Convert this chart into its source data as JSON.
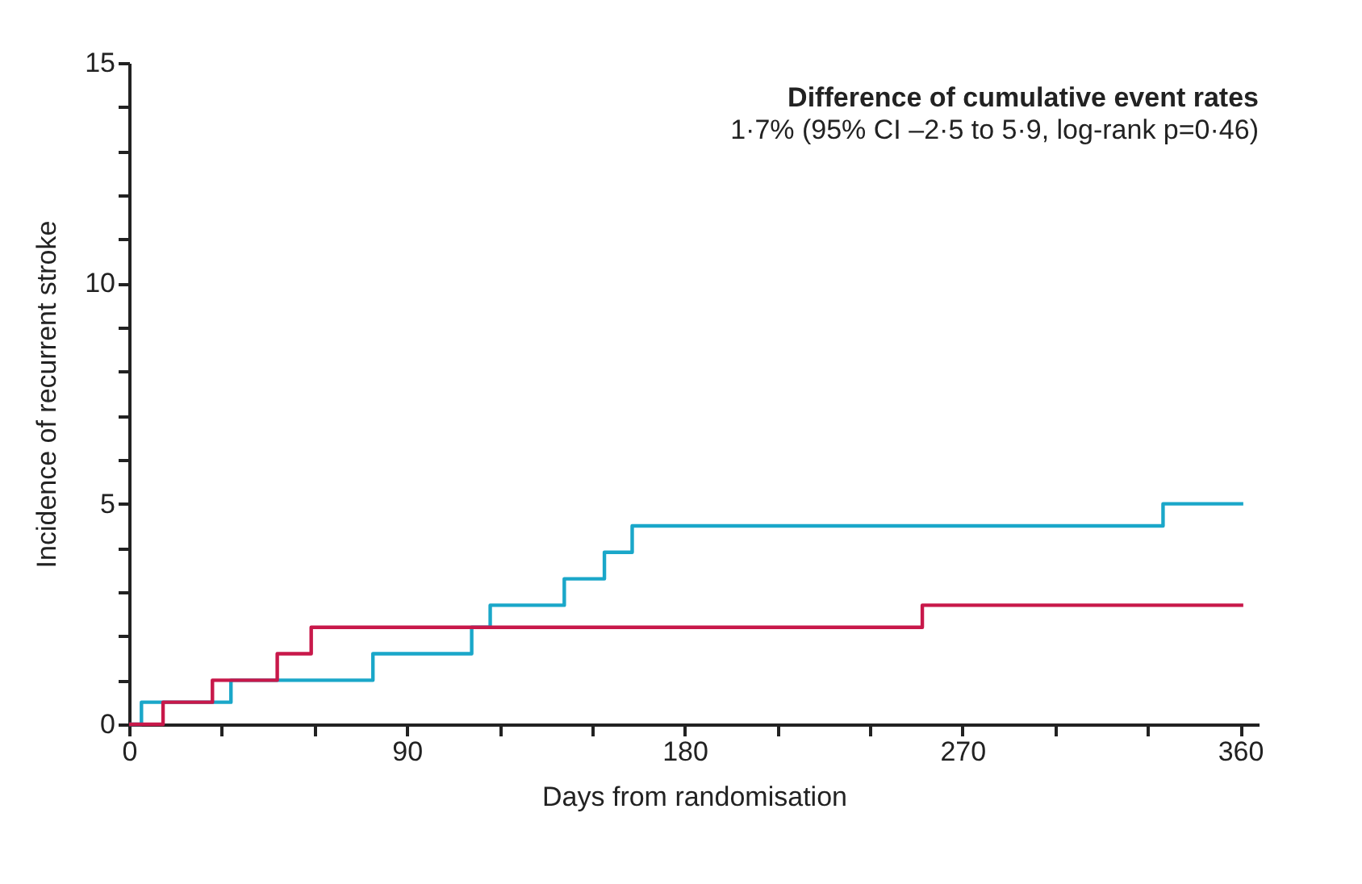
{
  "chart_data": {
    "type": "step",
    "title": "Difference of cumulative event rates",
    "subtitle": "1·7% (95% CI –2·5 to 5·9, log-rank p=0·46)",
    "xlabel": "Days from randomisation",
    "ylabel": "Incidence of recurrent stroke",
    "series": [
      {
        "color": "#1aa7c9",
        "x": [
          0,
          4,
          33,
          79,
          111,
          117,
          141,
          154,
          163,
          335,
          361
        ],
        "values": [
          0,
          0.5,
          1.0,
          1.6,
          2.2,
          2.7,
          3.3,
          3.9,
          4.5,
          5.0,
          5.0
        ]
      },
      {
        "color": "#c8184a",
        "x": [
          0,
          11,
          27,
          48,
          59,
          257,
          361
        ],
        "values": [
          0,
          0.5,
          1.0,
          1.6,
          2.2,
          2.7,
          2.7
        ]
      }
    ],
    "xlim": [
      0,
      366
    ],
    "ylim": [
      0,
      15
    ],
    "xticks": [
      0,
      {
        "value": 30,
        "label": null
      },
      {
        "value": 60,
        "label": null
      },
      90,
      {
        "value": 120,
        "label": null
      },
      {
        "value": 150,
        "label": null
      },
      180,
      {
        "value": 210,
        "label": null
      },
      {
        "value": 240,
        "label": null
      },
      270,
      {
        "value": 300,
        "label": null
      },
      {
        "value": 330,
        "label": null
      },
      360
    ],
    "yticks": [
      0,
      {
        "value": 1,
        "label": null
      },
      {
        "value": 2,
        "label": null
      },
      {
        "value": 3,
        "label": null
      },
      {
        "value": 4,
        "label": null
      },
      5,
      {
        "value": 6,
        "label": null
      },
      {
        "value": 7,
        "label": null
      },
      {
        "value": 8,
        "label": null
      },
      {
        "value": 9,
        "label": null
      },
      10,
      {
        "value": 11,
        "label": null
      },
      {
        "value": 12,
        "label": null
      },
      {
        "value": 13,
        "label": null
      },
      {
        "value": 14,
        "label": null
      },
      15
    ],
    "grid": false,
    "legend": false
  }
}
